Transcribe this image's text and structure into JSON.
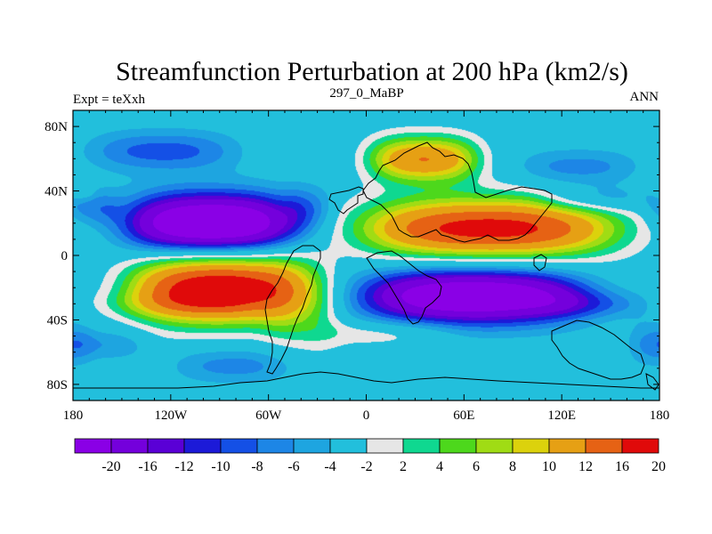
{
  "chart_data": {
    "type": "heatmap",
    "title": "Streamfunction Perturbation at 200 hPa (km2/s)",
    "left_subtitle": "Expt = teXxh",
    "center_subtitle": "297_0_MaBP",
    "right_subtitle": "ANN",
    "xlim": [
      -180,
      180
    ],
    "ylim": [
      -90,
      90
    ],
    "x_ticks": [
      -180,
      -120,
      -60,
      0,
      60,
      120,
      180
    ],
    "x_tick_labels": [
      "180",
      "120W",
      "60W",
      "0",
      "60E",
      "120E",
      "180"
    ],
    "y_ticks": [
      80,
      40,
      0,
      -40,
      -80
    ],
    "y_tick_labels": [
      "80N",
      "40N",
      "0",
      "40S",
      "80S"
    ],
    "colorbar": {
      "levels": [
        -20,
        -16,
        -12,
        -10,
        -8,
        -6,
        -4,
        -2,
        2,
        4,
        6,
        8,
        10,
        12,
        16,
        20
      ],
      "labels": [
        "-20",
        "-16",
        "-12",
        "-10",
        "-8",
        "-6",
        "-4",
        "-2",
        "2",
        "4",
        "6",
        "8",
        "10",
        "12",
        "16",
        "20"
      ],
      "colors": [
        "#8a00e6",
        "#7400dc",
        "#5a00d6",
        "#1c1ad8",
        "#1450e6",
        "#1d86e6",
        "#1ea5e0",
        "#22bfdc",
        "#e6e6e6",
        "#0fd890",
        "#4dd81c",
        "#a0dc14",
        "#dcd20c",
        "#e6a014",
        "#e66214",
        "#e00a0a"
      ]
    },
    "features": [
      {
        "name": "Tropical N Pacific low",
        "lon": -95,
        "lat": 20,
        "value": -24
      },
      {
        "name": "S Pacific high",
        "lon": -90,
        "lat": -20,
        "value": 24
      },
      {
        "name": "Indian Ocean low",
        "lon": 65,
        "lat": -25,
        "value": -22
      },
      {
        "name": "Asian high",
        "lon": 75,
        "lat": 17,
        "value": 22
      },
      {
        "name": "Eurasian high",
        "lon": 35,
        "lat": 60,
        "value": 16
      },
      {
        "name": "N Pacific low",
        "lon": -125,
        "lat": 65,
        "value": -7
      },
      {
        "name": "Arctic low",
        "lon": 130,
        "lat": 55,
        "value": -5
      }
    ]
  }
}
